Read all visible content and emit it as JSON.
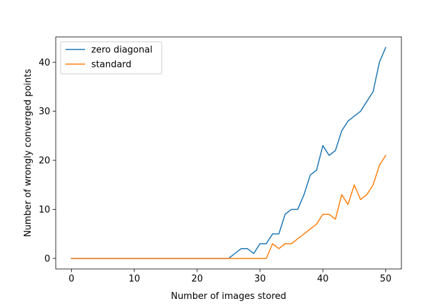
{
  "chart_data": {
    "type": "line",
    "title": "",
    "xlabel": "Number of images stored",
    "ylabel": "Number of wrongly converged points",
    "xlim": [
      -2.5,
      52.5
    ],
    "ylim": [
      -2.15,
      45.15
    ],
    "xticks": [
      0,
      10,
      20,
      30,
      40,
      50
    ],
    "yticks": [
      0,
      10,
      20,
      30,
      40
    ],
    "grid": false,
    "legend_position": "upper-left",
    "x": [
      0,
      1,
      2,
      3,
      4,
      5,
      6,
      7,
      8,
      9,
      10,
      11,
      12,
      13,
      14,
      15,
      16,
      17,
      18,
      19,
      20,
      21,
      22,
      23,
      24,
      25,
      26,
      27,
      28,
      29,
      30,
      31,
      32,
      33,
      34,
      35,
      36,
      37,
      38,
      39,
      40,
      41,
      42,
      43,
      44,
      45,
      46,
      47,
      48,
      49,
      50
    ],
    "series": [
      {
        "name": "zero diagonal",
        "color": "#1f77b4",
        "values": [
          0,
          0,
          0,
          0,
          0,
          0,
          0,
          0,
          0,
          0,
          0,
          0,
          0,
          0,
          0,
          0,
          0,
          0,
          0,
          0,
          0,
          0,
          0,
          0,
          0,
          0,
          1,
          2,
          2,
          1,
          3,
          3,
          5,
          5,
          9,
          10,
          10,
          13,
          17,
          18,
          23,
          21,
          22,
          26,
          28,
          29,
          30,
          32,
          34,
          40,
          43
        ]
      },
      {
        "name": "standard",
        "color": "#ff7f0e",
        "values": [
          0,
          0,
          0,
          0,
          0,
          0,
          0,
          0,
          0,
          0,
          0,
          0,
          0,
          0,
          0,
          0,
          0,
          0,
          0,
          0,
          0,
          0,
          0,
          0,
          0,
          0,
          0,
          0,
          0,
          0,
          0,
          0,
          3,
          2,
          3,
          3,
          4,
          5,
          6,
          7,
          9,
          9,
          8,
          13,
          11,
          15,
          12,
          13,
          15,
          19,
          21
        ]
      }
    ]
  }
}
